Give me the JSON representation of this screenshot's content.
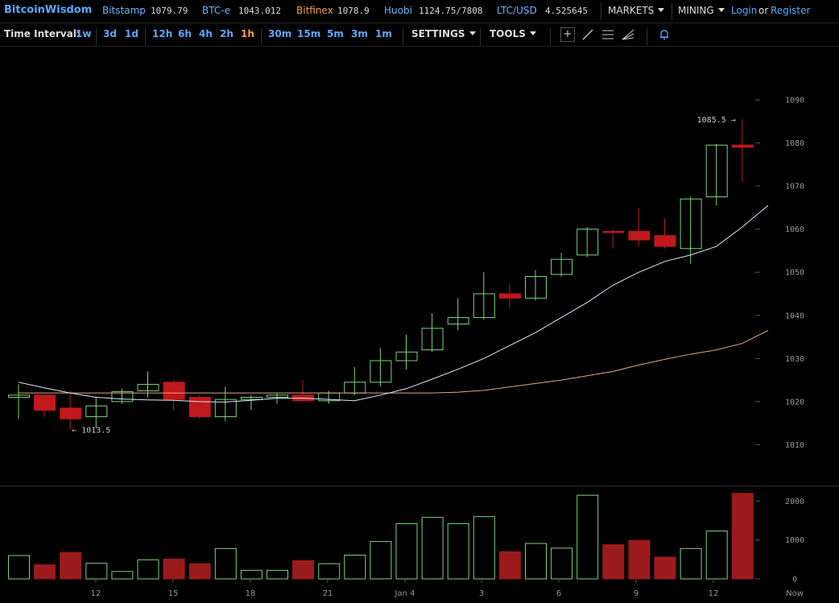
{
  "header": {
    "brand": "BitcoinWisdom",
    "markets": [
      {
        "name": "Bitstamp",
        "price": "1079.79",
        "color": "#6bb3ff"
      },
      {
        "name": "BTC-e",
        "price": "1043.012",
        "color": "#6bb3ff"
      },
      {
        "name": "Bitfinex",
        "price": "1078.9",
        "color": "#ff9f3f"
      },
      {
        "name": "Huobi",
        "price": "1124.75/7808",
        "color": "#6bb3ff"
      },
      {
        "name": "LTC/USD",
        "price": "4.525645",
        "color": "#6bb3ff"
      }
    ],
    "markets_menu": "MARKETS",
    "mining_menu": "MINING",
    "login": "Login",
    "or": "or",
    "register": "Register"
  },
  "toolbar": {
    "time_interval_label": "Time Interval:",
    "intervals": [
      "1w",
      "3d",
      "1d",
      "12h",
      "6h",
      "4h",
      "2h",
      "1h",
      "30m",
      "15m",
      "5m",
      "3m",
      "1m"
    ],
    "active_interval": "1h",
    "settings": "SETTINGS",
    "tools": "TOOLS",
    "tool_icons": [
      "crosshair-icon",
      "line-tool-icon",
      "horizontal-lines-icon",
      "fan-tool-icon",
      "alert-bell-icon"
    ]
  },
  "chart_data": {
    "type": "candlestick",
    "price_axis": {
      "ticks": [
        1010,
        1020,
        1030,
        1040,
        1050,
        1060,
        1070,
        1080,
        1090
      ]
    },
    "volume_axis": {
      "ticks": [
        0,
        1000,
        2000
      ]
    },
    "time_labels": [
      "12",
      "15",
      "18",
      "21",
      "Jan 4",
      "3",
      "6",
      "9",
      "12",
      "Now"
    ],
    "high_annotation": "1085.5",
    "low_annotation": "1013.5",
    "candles": [
      {
        "o": 1021.0,
        "c": 1021.5,
        "h": 1024.0,
        "l": 1016.0,
        "v": 600
      },
      {
        "o": 1021.5,
        "c": 1018.0,
        "h": 1021.5,
        "l": 1016.5,
        "v": 360
      },
      {
        "o": 1018.5,
        "c": 1016.0,
        "h": 1022.5,
        "l": 1013.5,
        "v": 680
      },
      {
        "o": 1016.5,
        "c": 1019.0,
        "h": 1021.0,
        "l": 1013.8,
        "v": 400
      },
      {
        "o": 1020.0,
        "c": 1022.3,
        "h": 1023.0,
        "l": 1019.5,
        "v": 190
      },
      {
        "o": 1022.5,
        "c": 1024.0,
        "h": 1027.0,
        "l": 1021.0,
        "v": 490
      },
      {
        "o": 1024.5,
        "c": 1020.5,
        "h": 1025.0,
        "l": 1018.0,
        "v": 510
      },
      {
        "o": 1021.0,
        "c": 1016.5,
        "h": 1021.5,
        "l": 1016.0,
        "v": 390
      },
      {
        "o": 1016.5,
        "c": 1020.5,
        "h": 1023.5,
        "l": 1015.5,
        "v": 780
      },
      {
        "o": 1020.5,
        "c": 1021.0,
        "h": 1021.5,
        "l": 1018.0,
        "v": 220
      },
      {
        "o": 1021.0,
        "c": 1021.5,
        "h": 1022.0,
        "l": 1019.5,
        "v": 220
      },
      {
        "o": 1021.5,
        "c": 1020.2,
        "h": 1025.0,
        "l": 1020.0,
        "v": 470
      },
      {
        "o": 1020.2,
        "c": 1022.0,
        "h": 1022.5,
        "l": 1019.5,
        "v": 390
      },
      {
        "o": 1022.0,
        "c": 1024.5,
        "h": 1028.0,
        "l": 1021.5,
        "v": 610
      },
      {
        "o": 1024.5,
        "c": 1029.5,
        "h": 1032.5,
        "l": 1023.5,
        "v": 960
      },
      {
        "o": 1029.5,
        "c": 1031.5,
        "h": 1035.5,
        "l": 1027.5,
        "v": 1420
      },
      {
        "o": 1032.0,
        "c": 1037.0,
        "h": 1040.5,
        "l": 1031.5,
        "v": 1580
      },
      {
        "o": 1038.0,
        "c": 1039.5,
        "h": 1044.0,
        "l": 1036.5,
        "v": 1420
      },
      {
        "o": 1039.5,
        "c": 1045.0,
        "h": 1050.0,
        "l": 1039.0,
        "v": 1600
      },
      {
        "o": 1045.0,
        "c": 1044.0,
        "h": 1047.5,
        "l": 1041.5,
        "v": 700
      },
      {
        "o": 1044.0,
        "c": 1049.0,
        "h": 1050.5,
        "l": 1043.5,
        "v": 910
      },
      {
        "o": 1049.5,
        "c": 1053.0,
        "h": 1054.5,
        "l": 1049.0,
        "v": 790
      },
      {
        "o": 1054.0,
        "c": 1060.0,
        "h": 1060.5,
        "l": 1053.5,
        "v": 2150
      },
      {
        "o": 1059.5,
        "c": 1059.3,
        "h": 1060.0,
        "l": 1055.5,
        "v": 880
      },
      {
        "o": 1059.5,
        "c": 1057.5,
        "h": 1065.0,
        "l": 1056.0,
        "v": 990
      },
      {
        "o": 1058.5,
        "c": 1056.0,
        "h": 1062.5,
        "l": 1055.5,
        "v": 560
      },
      {
        "o": 1055.5,
        "c": 1067.0,
        "h": 1067.5,
        "l": 1052.0,
        "v": 780
      },
      {
        "o": 1067.5,
        "c": 1079.5,
        "h": 1079.8,
        "l": 1065.5,
        "v": 1230
      },
      {
        "o": 1079.5,
        "c": 1079.0,
        "h": 1085.5,
        "l": 1071.0,
        "v": 2200
      }
    ],
    "ma_fast": [
      1024.5,
      1023.2,
      1022.0,
      1021.0,
      1020.6,
      1020.4,
      1020.3,
      1020.0,
      1019.9,
      1020.3,
      1020.8,
      1020.8,
      1020.5,
      1020.2,
      1021.5,
      1023.0,
      1025.2,
      1027.5,
      1030.0,
      1033.0,
      1036.0,
      1039.5,
      1043.0,
      1047.0,
      1050.0,
      1052.5,
      1054.0,
      1056.0,
      1060.5,
      1065.5
    ],
    "ma_slow": [
      1022.0,
      1022.0,
      1022.0,
      1022.0,
      1022.0,
      1022.0,
      1022.0,
      1022.0,
      1022.0,
      1022.0,
      1022.0,
      1022.0,
      1022.0,
      1022.0,
      1022.0,
      1022.0,
      1022.0,
      1022.2,
      1022.6,
      1023.4,
      1024.2,
      1025.0,
      1026.0,
      1027.0,
      1028.5,
      1029.8,
      1031.0,
      1032.0,
      1033.5,
      1036.5
    ]
  }
}
